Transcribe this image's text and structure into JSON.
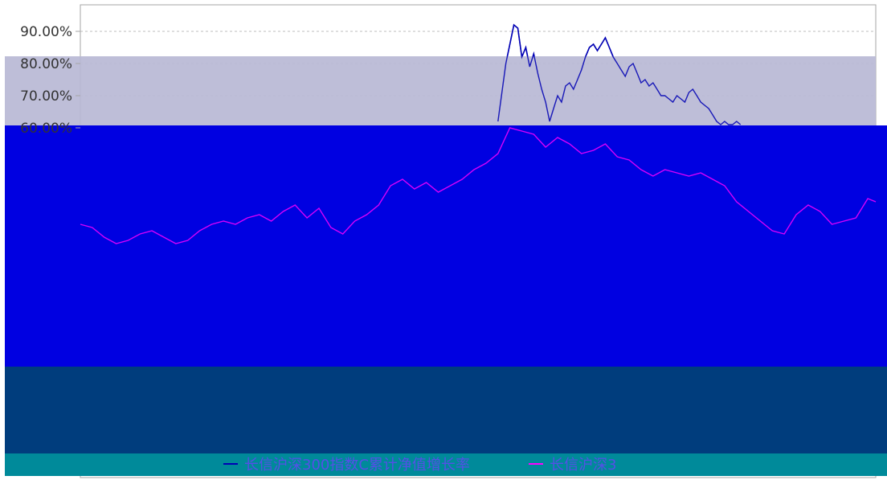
{
  "colors": {
    "background": "#ffffff",
    "grid": "#bcbcbc",
    "axis": "#a6a6a6",
    "series_1": "#0000b4",
    "series_2": "#ff00ff",
    "band_lavender": "#b9b8d5",
    "band_blue": "#0000e1",
    "band_navy": "#003d7d",
    "band_teal": "#008a9a",
    "legend_text": "#5450e6"
  },
  "chart_data": {
    "type": "line",
    "y_ticks": [
      "90.00%",
      "80.00%",
      "70.00%",
      "60.00%"
    ],
    "y_tick_values": [
      90,
      80,
      70,
      60
    ],
    "ylim": [
      20,
      95
    ],
    "xlim": [
      0,
      200
    ],
    "grid": true,
    "legend_position": "bottom",
    "series": [
      {
        "name": "长信沪深300指数C累计净值增长率",
        "color": "#0000b4",
        "x": [
          105,
          107,
          108,
          109,
          110,
          111,
          112,
          113,
          114,
          115,
          116,
          117,
          118,
          119,
          120,
          121,
          122,
          123,
          124,
          125,
          126,
          127,
          128,
          129,
          130,
          131,
          132,
          133,
          134,
          135,
          136,
          137,
          138,
          139,
          140,
          141,
          142,
          143,
          144,
          145,
          146,
          147,
          148,
          149,
          150,
          151,
          152,
          153,
          154,
          155,
          156,
          157,
          158,
          159,
          160,
          161,
          162,
          163,
          164,
          165,
          166
        ],
        "y": [
          62,
          80,
          86,
          92,
          91,
          82,
          85,
          79,
          83,
          77,
          72,
          68,
          62,
          66,
          70,
          68,
          73,
          74,
          72,
          75,
          78,
          82,
          85,
          86,
          84,
          86,
          88,
          85,
          82,
          80,
          78,
          76,
          79,
          80,
          77,
          74,
          75,
          73,
          74,
          72,
          70,
          70,
          69,
          68,
          70,
          69,
          68,
          71,
          72,
          70,
          68,
          67,
          66,
          64,
          62,
          61,
          62,
          61,
          61,
          62,
          61
        ]
      },
      {
        "name": "长信沪深300指数C业绩比较基准收益率",
        "color": "#ff00ff",
        "x": [
          0,
          3,
          6,
          9,
          12,
          15,
          18,
          21,
          24,
          27,
          30,
          33,
          36,
          39,
          42,
          45,
          48,
          51,
          54,
          57,
          60,
          63,
          66,
          69,
          72,
          75,
          78,
          81,
          84,
          87,
          90,
          93,
          96,
          99,
          102,
          105,
          108,
          111,
          114,
          117,
          120,
          123,
          126,
          129,
          132,
          135,
          138,
          141,
          144,
          147,
          150,
          153,
          156,
          159,
          162,
          165,
          168,
          171,
          174,
          177,
          180,
          183,
          186,
          189,
          192,
          195,
          198,
          200
        ],
        "y": [
          30,
          29,
          26,
          24,
          25,
          27,
          28,
          26,
          24,
          25,
          28,
          30,
          31,
          30,
          32,
          33,
          31,
          34,
          36,
          32,
          35,
          29,
          27,
          31,
          33,
          36,
          42,
          44,
          41,
          43,
          40,
          42,
          44,
          47,
          49,
          52,
          60,
          59,
          58,
          54,
          57,
          55,
          52,
          53,
          55,
          51,
          50,
          47,
          45,
          47,
          46,
          45,
          46,
          44,
          42,
          37,
          34,
          31,
          28,
          27,
          33,
          36,
          34,
          30,
          31,
          32,
          38,
          37
        ]
      }
    ]
  },
  "legend": {
    "series_1_label": "长信沪深300指数C累计净值增长率",
    "series_2_label": "长信沪深3"
  }
}
